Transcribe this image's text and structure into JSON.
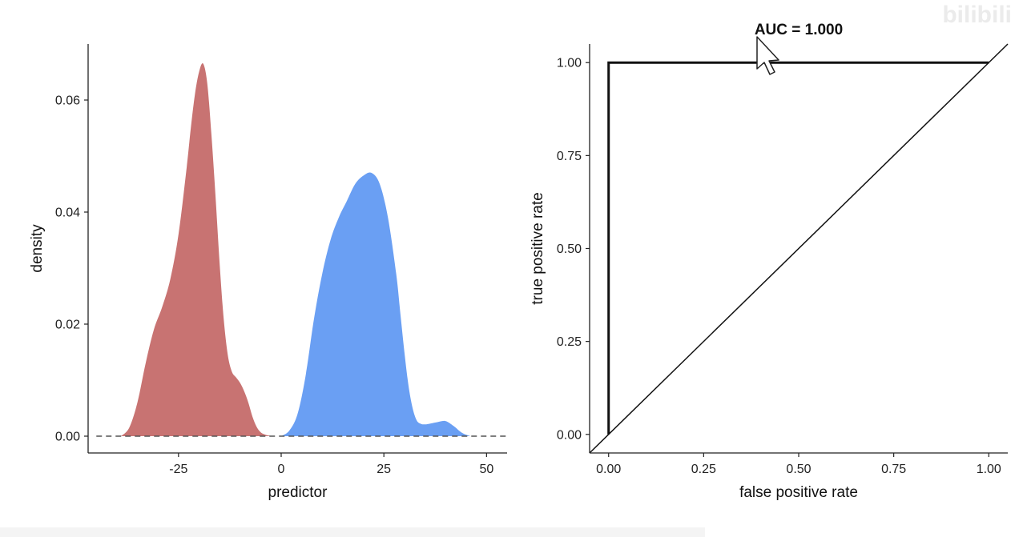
{
  "watermark": "bilibili",
  "chart_data": [
    {
      "type": "area",
      "xlabel": "predictor",
      "ylabel": "density",
      "xlim": [
        -47,
        55
      ],
      "ylim": [
        -0.003,
        0.07
      ],
      "x_ticks": [
        -25,
        0,
        25,
        50
      ],
      "x_tick_labels": [
        "-25",
        "0",
        "25",
        "50"
      ],
      "y_ticks": [
        0.0,
        0.02,
        0.04,
        0.06
      ],
      "y_tick_labels": [
        "0.00",
        "0.02",
        "0.04",
        "0.06"
      ],
      "baseline": {
        "y": 0,
        "style": "dashed",
        "x_range": [
          -45,
          55
        ]
      },
      "grid": false,
      "legend": "none",
      "series": [
        {
          "color": "#c87372",
          "x": [
            -39,
            -37,
            -35,
            -33,
            -31,
            -29,
            -27,
            -25,
            -23,
            -22,
            -21,
            -20,
            -19,
            -18,
            -17,
            -16,
            -15,
            -14,
            -13,
            -12,
            -11,
            -10,
            -9,
            -8,
            -7,
            -6,
            -5,
            -4,
            -3,
            -2,
            -1,
            0
          ],
          "y": [
            0.0,
            0.0015,
            0.006,
            0.013,
            0.019,
            0.023,
            0.028,
            0.036,
            0.048,
            0.055,
            0.061,
            0.065,
            0.0665,
            0.063,
            0.054,
            0.043,
            0.031,
            0.021,
            0.0145,
            0.0115,
            0.0105,
            0.0095,
            0.008,
            0.006,
            0.0035,
            0.0017,
            0.0007,
            0.0003,
            0.0001,
            0.0,
            0.0,
            0.0
          ]
        },
        {
          "color": "#6a9ff3",
          "x": [
            0,
            2,
            4,
            6,
            8,
            10,
            12,
            14,
            16,
            18,
            20,
            22,
            24,
            26,
            28,
            29,
            30,
            31,
            32,
            33,
            34,
            35,
            36,
            38,
            40,
            42,
            44,
            46
          ],
          "y": [
            0.0,
            0.001,
            0.004,
            0.011,
            0.021,
            0.029,
            0.035,
            0.039,
            0.042,
            0.045,
            0.0465,
            0.047,
            0.045,
            0.039,
            0.029,
            0.022,
            0.015,
            0.009,
            0.005,
            0.0028,
            0.0022,
            0.0021,
            0.0022,
            0.0025,
            0.0027,
            0.0018,
            0.0006,
            0.0
          ]
        }
      ]
    },
    {
      "type": "line",
      "title": "AUC = 1.000",
      "xlabel": "false positive rate",
      "ylabel": "true positive rate",
      "xlim": [
        -0.05,
        1.05
      ],
      "ylim": [
        -0.05,
        1.05
      ],
      "x_ticks": [
        0,
        0.25,
        0.5,
        0.75,
        1.0
      ],
      "x_tick_labels": [
        "0.00",
        "0.25",
        "0.50",
        "0.75",
        "1.00"
      ],
      "y_ticks": [
        0,
        0.25,
        0.5,
        0.75,
        1.0
      ],
      "y_tick_labels": [
        "0.00",
        "0.25",
        "0.50",
        "0.75",
        "1.00"
      ],
      "grid": false,
      "legend": "none",
      "series": [
        {
          "x": [
            0,
            0,
            1
          ],
          "y": [
            0,
            1,
            1
          ],
          "color": "#111111",
          "style": "thick"
        },
        {
          "x": [
            -0.05,
            1.05
          ],
          "y": [
            -0.05,
            1.05
          ],
          "color": "#111111",
          "style": "thin"
        }
      ]
    }
  ]
}
